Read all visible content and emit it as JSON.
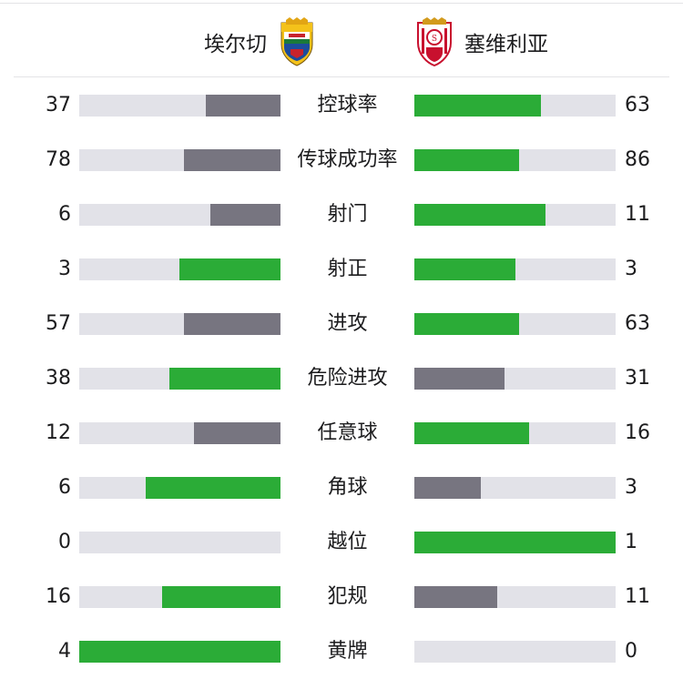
{
  "colors": {
    "win": "#2bac37",
    "lose": "#777580",
    "track": "#e2e2e8"
  },
  "home": {
    "name": "埃尔切",
    "crest_icon": "elche-crest-icon"
  },
  "away": {
    "name": "塞维利亚",
    "crest_icon": "sevilla-crest-icon"
  },
  "stats": [
    {
      "label": "控球率",
      "home": "37",
      "away": "63",
      "home_fill": 0.37,
      "away_fill": 0.63,
      "home_color": "lose",
      "away_color": "win"
    },
    {
      "label": "传球成功率",
      "home": "78",
      "away": "86",
      "home_fill": 0.48,
      "away_fill": 0.52,
      "home_color": "lose",
      "away_color": "win"
    },
    {
      "label": "射门",
      "home": "6",
      "away": "11",
      "home_fill": 0.35,
      "away_fill": 0.65,
      "home_color": "lose",
      "away_color": "win"
    },
    {
      "label": "射正",
      "home": "3",
      "away": "3",
      "home_fill": 0.5,
      "away_fill": 0.5,
      "home_color": "win",
      "away_color": "win"
    },
    {
      "label": "进攻",
      "home": "57",
      "away": "63",
      "home_fill": 0.48,
      "away_fill": 0.52,
      "home_color": "lose",
      "away_color": "win"
    },
    {
      "label": "危险进攻",
      "home": "38",
      "away": "31",
      "home_fill": 0.55,
      "away_fill": 0.45,
      "home_color": "win",
      "away_color": "lose"
    },
    {
      "label": "任意球",
      "home": "12",
      "away": "16",
      "home_fill": 0.43,
      "away_fill": 0.57,
      "home_color": "lose",
      "away_color": "win"
    },
    {
      "label": "角球",
      "home": "6",
      "away": "3",
      "home_fill": 0.67,
      "away_fill": 0.33,
      "home_color": "win",
      "away_color": "lose"
    },
    {
      "label": "越位",
      "home": "0",
      "away": "1",
      "home_fill": 0.0,
      "away_fill": 1.0,
      "home_color": "lose",
      "away_color": "win"
    },
    {
      "label": "犯规",
      "home": "16",
      "away": "11",
      "home_fill": 0.59,
      "away_fill": 0.41,
      "home_color": "win",
      "away_color": "lose"
    },
    {
      "label": "黄牌",
      "home": "4",
      "away": "0",
      "home_fill": 1.0,
      "away_fill": 0.0,
      "home_color": "win",
      "away_color": "lose"
    }
  ]
}
